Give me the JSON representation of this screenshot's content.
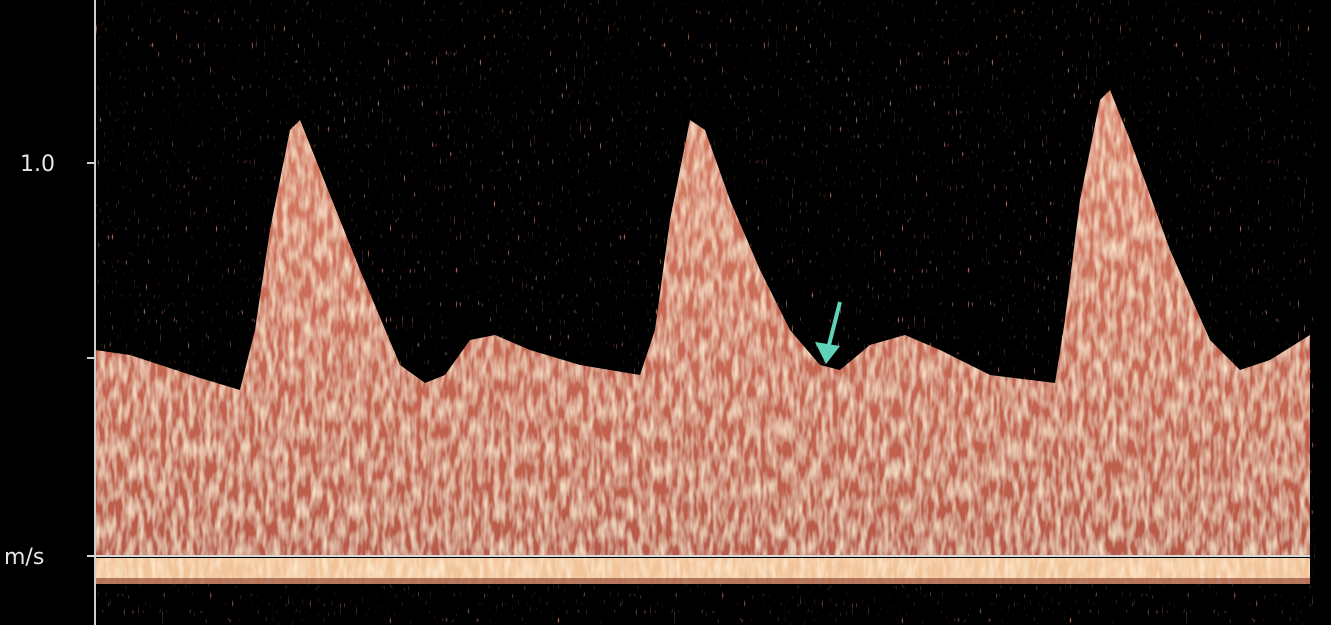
{
  "axis": {
    "tick_label": "1.0",
    "unit": "m/s"
  }
}
